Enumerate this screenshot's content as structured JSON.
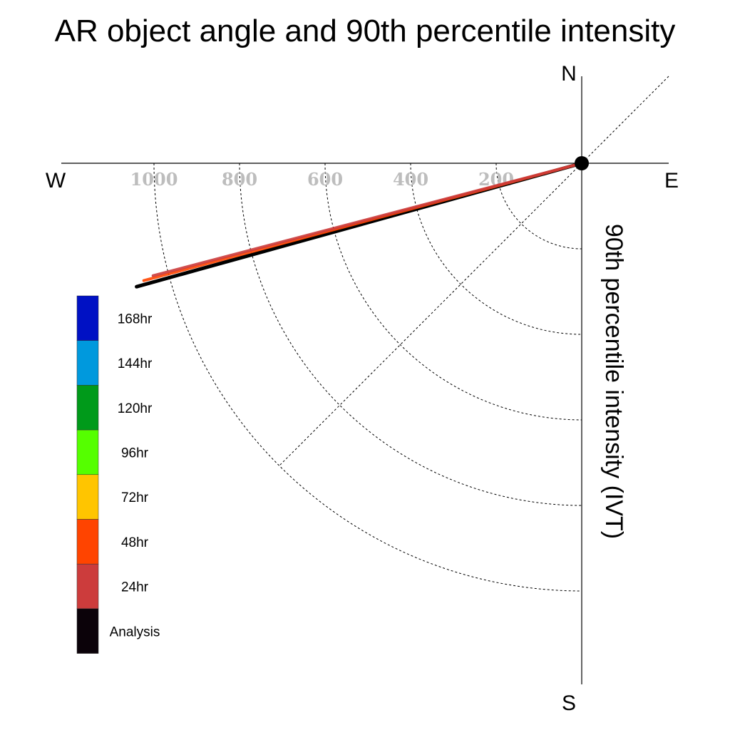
{
  "chart_data": {
    "type": "polar-line",
    "title": "AR object angle and 90th percentile intensity",
    "radial_label": "90th percentile intensity (IVT)",
    "compass": {
      "north": "N",
      "south": "S",
      "east": "E",
      "west": "W"
    },
    "r_ticks": [
      200,
      400,
      600,
      800,
      1000
    ],
    "r_tick_labels": [
      "200",
      "400",
      "600",
      "800",
      "1000"
    ],
    "series": [
      {
        "name": "Analysis",
        "color": "#000000",
        "angle_deg": 195.5,
        "intensity": 1080
      },
      {
        "name": "48hr",
        "color": "#ff4500",
        "angle_deg": 195.0,
        "intensity": 1060
      },
      {
        "name": "24hr",
        "color": "#cc3b3b",
        "angle_deg": 194.7,
        "intensity": 1036
      }
    ],
    "legend": [
      {
        "label": "168hr",
        "color": "#0011c4"
      },
      {
        "label": "144hr",
        "color": "#0099dd"
      },
      {
        "label": "120hr",
        "color": "#009a1a"
      },
      {
        "label": "96hr",
        "color": "#55ff00"
      },
      {
        "label": "72hr",
        "color": "#ffc500"
      },
      {
        "label": "48hr",
        "color": "#ff4400"
      },
      {
        "label": "24hr",
        "color": "#cc3c3c"
      },
      {
        "label": "Analysis",
        "color": "#0b0209"
      }
    ]
  }
}
